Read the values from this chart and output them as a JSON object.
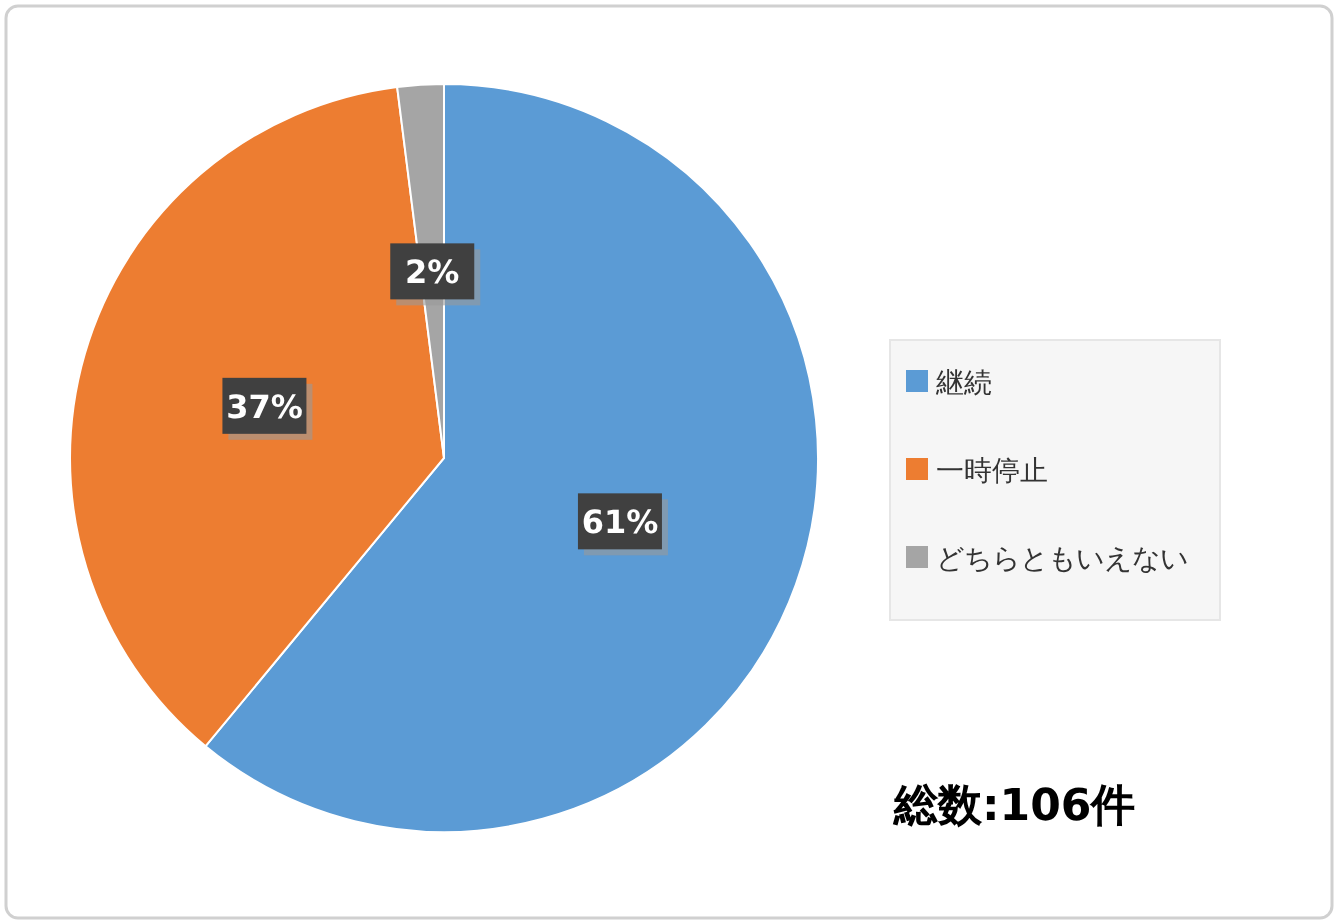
{
  "chart_data": {
    "type": "pie",
    "categories": [
      "継続",
      "一時停止",
      "どちらともいえない"
    ],
    "values": [
      61,
      37,
      2
    ],
    "colors": [
      "#5b9bd5",
      "#ed7d31",
      "#a5a5a5"
    ],
    "value_labels": [
      "61%",
      "37%",
      "2%"
    ],
    "legend": "right",
    "annotations": [
      "総数:106件"
    ]
  }
}
